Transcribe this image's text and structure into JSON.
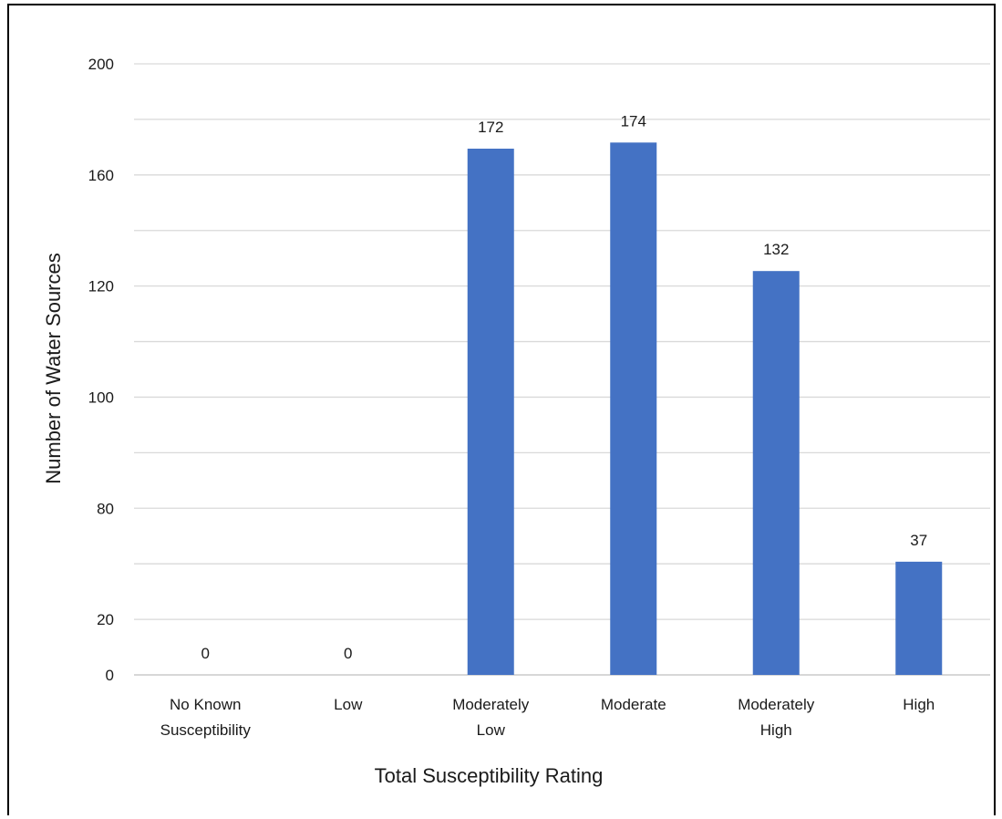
{
  "chart_data": {
    "type": "bar",
    "categories": [
      [
        "No Known",
        "Susceptibility"
      ],
      [
        "Low"
      ],
      [
        "Moderately",
        "Low"
      ],
      [
        "Moderate"
      ],
      [
        "Moderately",
        "High"
      ],
      [
        "High"
      ]
    ],
    "values": [
      0,
      0,
      172,
      174,
      132,
      37
    ],
    "data_labels": [
      "0",
      "0",
      "172",
      "174",
      "132",
      "37"
    ],
    "xlabel": "Total Susceptibility Rating",
    "ylabel": "Number of Water Sources",
    "y_tick_labels": [
      "0",
      "20",
      "",
      "80",
      "",
      "100",
      "",
      "120",
      "",
      "160",
      "",
      "200"
    ],
    "bar_color": "#4472c4",
    "grid": true,
    "legend": "none"
  }
}
